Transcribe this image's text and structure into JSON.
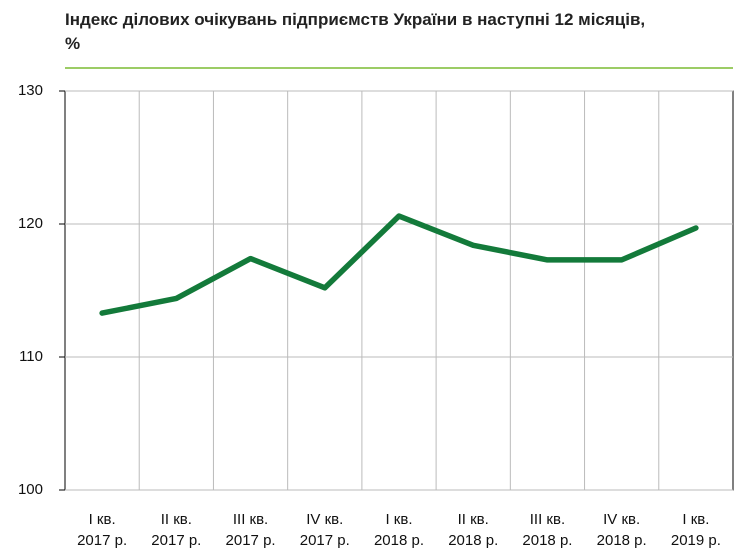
{
  "chart_data": {
    "type": "line",
    "title": "Індекс ділових очікувань підприємств України в наступні 12 місяців, %",
    "categories": [
      [
        "I кв.",
        "2017 р."
      ],
      [
        "II кв.",
        "2017 р."
      ],
      [
        "III кв.",
        "2017 р."
      ],
      [
        "IV кв.",
        "2017 р."
      ],
      [
        "I кв.",
        "2018 р."
      ],
      [
        "II кв.",
        "2018 р."
      ],
      [
        "III кв.",
        "2018 р."
      ],
      [
        "IV кв.",
        "2018 р."
      ],
      [
        "I кв.",
        "2019 р."
      ]
    ],
    "values": [
      113.3,
      114.4,
      117.4,
      115.2,
      120.6,
      118.4,
      117.3,
      117.3,
      119.7
    ],
    "color": "#137a3a",
    "ylim": [
      100,
      130
    ],
    "yticks": [
      100,
      110,
      120,
      130
    ],
    "grid": true
  }
}
